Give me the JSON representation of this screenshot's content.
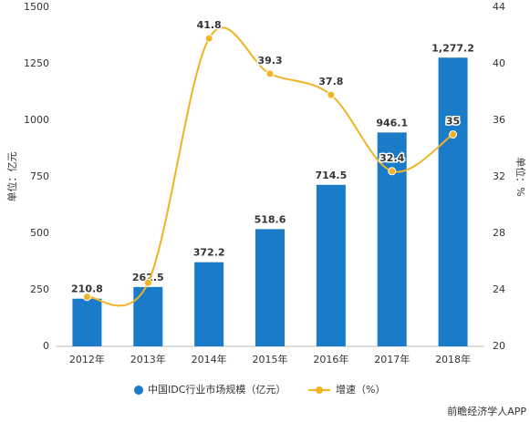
{
  "chart_data": {
    "type": "bar-line",
    "categories": [
      "2012年",
      "2013年",
      "2014年",
      "2015年",
      "2016年",
      "2017年",
      "2018年"
    ],
    "series": [
      {
        "name": "中国IDC行业市场规模（亿元）",
        "type": "bar",
        "color": "#1a7bc9",
        "values": [
          210.8,
          262.5,
          372.2,
          518.6,
          714.5,
          946.1,
          1277.2
        ],
        "value_labels": [
          "210.8",
          "262.5",
          "372.2",
          "518.6",
          "714.5",
          "946.1",
          "1,277.2"
        ]
      },
      {
        "name": "增速（%）",
        "type": "line",
        "axis": "y2",
        "color": "#f0b323",
        "values": [
          23.5,
          24.5,
          41.8,
          39.3,
          37.8,
          32.4,
          35
        ],
        "value_labels": [
          null,
          null,
          "41.8",
          "39.3",
          "37.8",
          "32.4",
          "35"
        ]
      }
    ],
    "ylabel": "单位：亿元",
    "y2label": "单位：%",
    "ylim": [
      0,
      1500
    ],
    "yticks": [
      0,
      250,
      500,
      750,
      1000,
      1250,
      1500
    ],
    "y2lim": [
      20,
      44
    ],
    "y2ticks": [
      20,
      24,
      28,
      32,
      36,
      40,
      44
    ],
    "source": "前瞻经济学人APP"
  }
}
